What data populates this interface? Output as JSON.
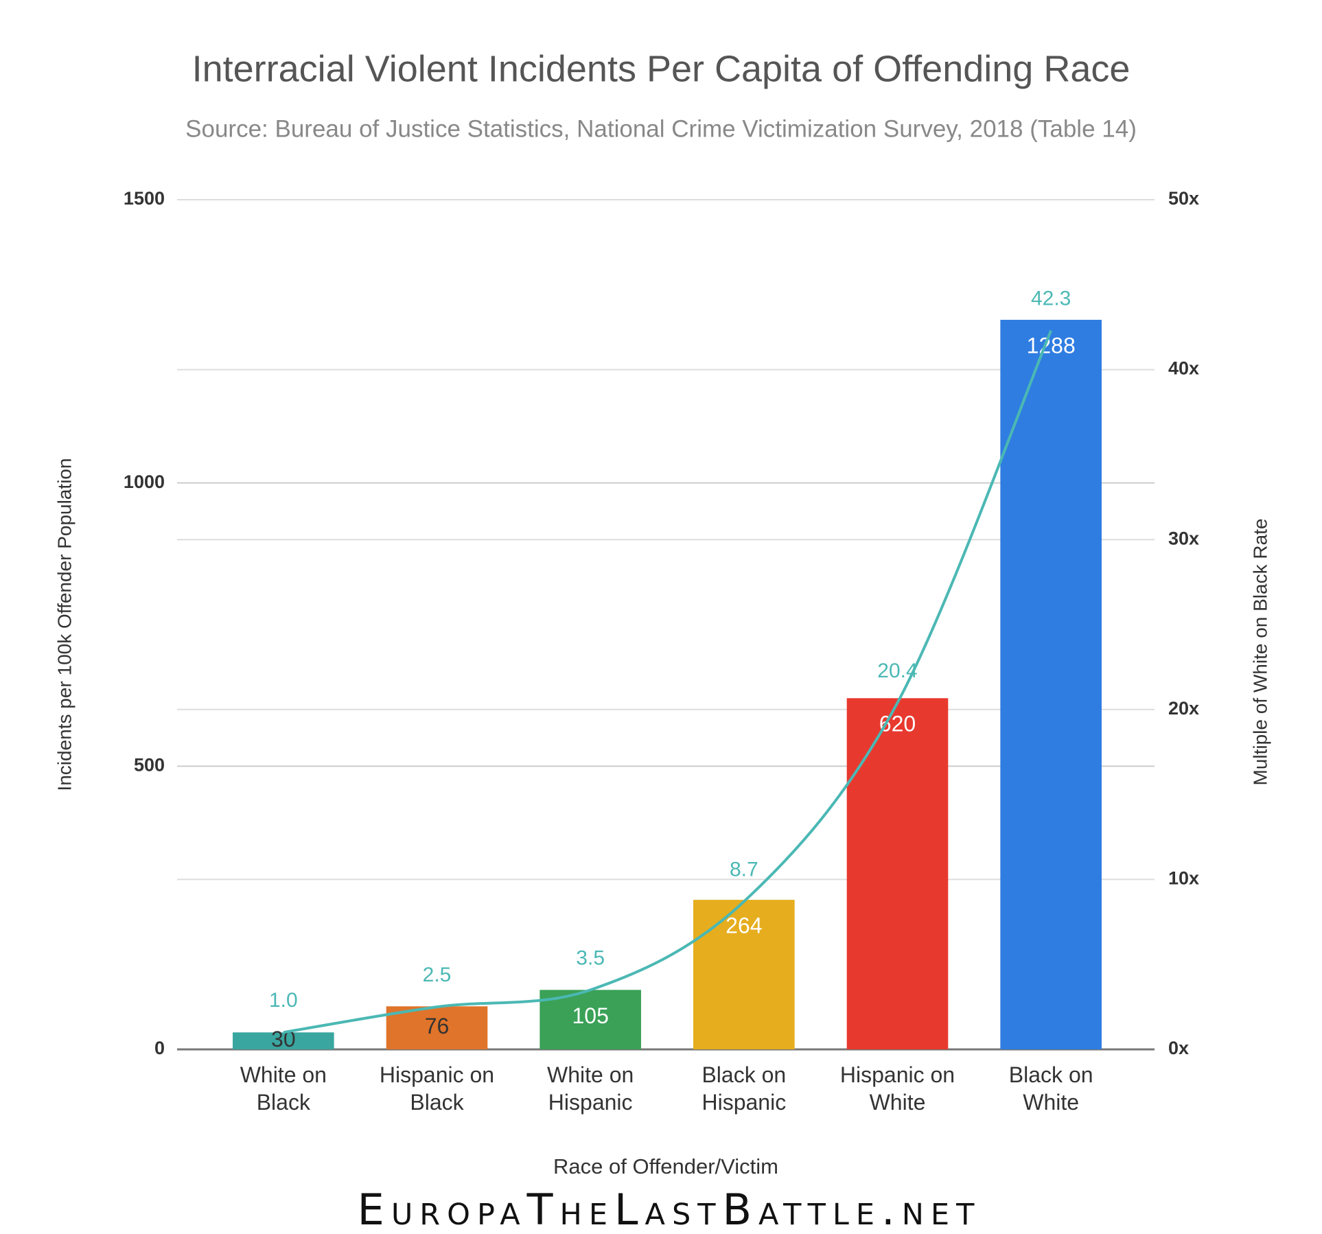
{
  "chart_data": {
    "type": "bar",
    "title": "Interracial Violent Incidents Per Capita of Offending Race",
    "subtitle": "Source: Bureau of Justice Statistics, National Crime Victimization Survey, 2018 (Table 14)",
    "x_label": "Race of Offender/Victim",
    "y_label": "Incidents per 100k Offender Population",
    "y2_label": "Multiple of White on Black Rate",
    "watermark": "EuropaTheLastBattle.net",
    "categories": [
      "White on Black",
      "Hispanic on Black",
      "White on Hispanic",
      "Black on Hispanic",
      "Hispanic on White",
      "Black on White"
    ],
    "values": [
      30,
      76,
      105,
      264,
      620,
      1288
    ],
    "colors": [
      "#3aa6a0",
      "#e0742a",
      "#3aa157",
      "#e6ad1e",
      "#e8392f",
      "#2f7de1"
    ],
    "series": [
      {
        "type": "line",
        "axis": "y2",
        "color": "#4bb8b4",
        "values": [
          1.0,
          2.5,
          3.5,
          8.7,
          20.4,
          42.3
        ],
        "value_labels": [
          "1.0",
          "2.5",
          "3.5",
          "8.7",
          "20.4",
          "42.3"
        ]
      }
    ],
    "ylim": [
      0,
      1500
    ],
    "yticks": [
      0,
      500,
      1000,
      1500
    ],
    "y2lim": [
      0,
      50
    ],
    "y2ticks": [
      {
        "value": 0,
        "label": "0x"
      },
      {
        "value": 10,
        "label": "10x"
      },
      {
        "value": 20,
        "label": "20x"
      },
      {
        "value": 30,
        "label": "30x"
      },
      {
        "value": 40,
        "label": "40x"
      },
      {
        "value": 50,
        "label": "50x"
      }
    ],
    "grid": true
  }
}
